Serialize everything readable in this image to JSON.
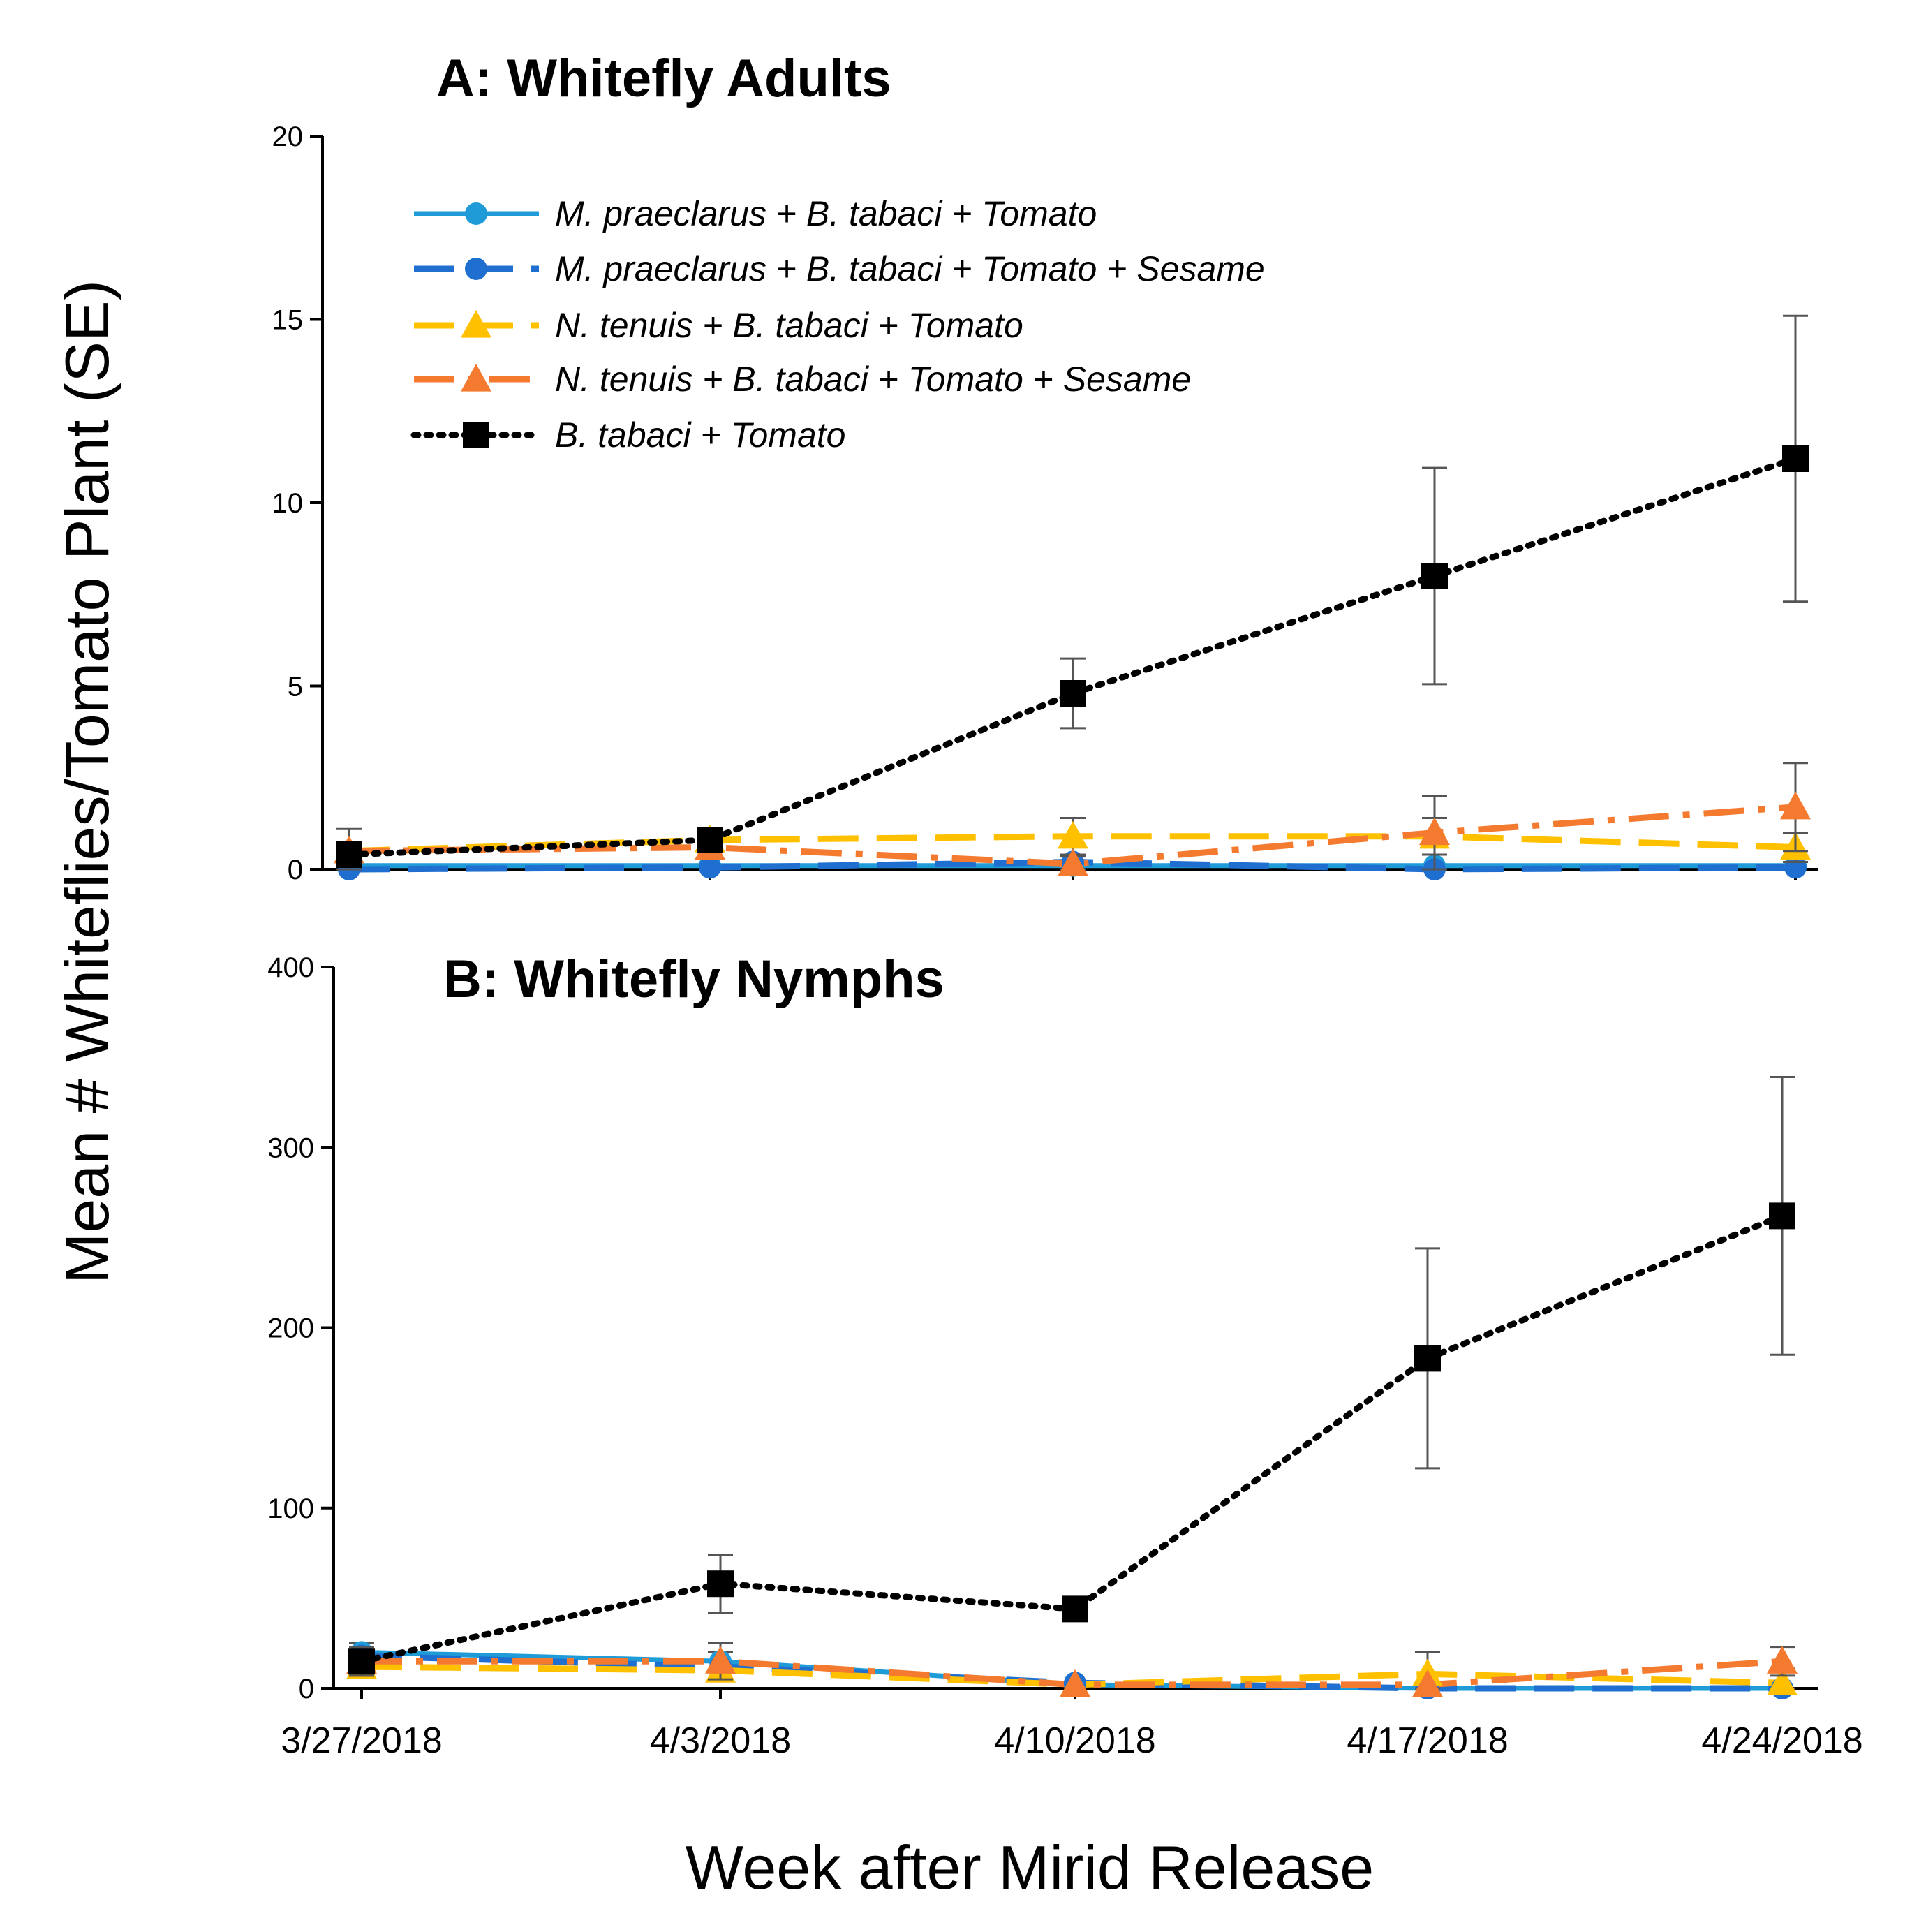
{
  "chart_data": [
    {
      "type": "line",
      "title": "A: Whitefly Adults",
      "ylim": [
        0,
        20
      ],
      "yticks": [
        "0",
        "5",
        "10",
        "15",
        "20"
      ],
      "yvalues": [
        0,
        5,
        10,
        15,
        20
      ],
      "categories": [
        "3/27/2018",
        "4/3/2018",
        "4/10/2018",
        "4/17/2018",
        "4/24/2018"
      ],
      "legend_position": "top-left",
      "series": [
        {
          "name": "M. praeclarus + B. tabaci + Tomato",
          "color": "#1f9bd8",
          "marker": "circle",
          "dash": "solid",
          "values": [
            0.1,
            0.1,
            0.1,
            0.1,
            0.1
          ],
          "err": [
            0,
            0,
            0,
            0,
            0
          ]
        },
        {
          "name": "M. praeclarus + B. tabaci + Tomato + Sesame",
          "color": "#1f6fd0",
          "marker": "circle",
          "dash": "long-dash",
          "values": [
            0,
            0.05,
            0.2,
            0,
            0.05
          ],
          "err": [
            0,
            0,
            0,
            0,
            0
          ]
        },
        {
          "name": "N. tenuis + B. tabaci + Tomato",
          "color": "#ffc000",
          "marker": "triangle",
          "dash": "long-dash",
          "values": [
            0.5,
            0.8,
            0.9,
            0.9,
            0.6
          ],
          "err": [
            0,
            0,
            0.5,
            0.5,
            0.4
          ]
        },
        {
          "name": "N. tenuis + B. tabaci + Tomato + Sesame",
          "color": "#f47a30",
          "marker": "triangle",
          "dash": "dash-dot",
          "values": [
            0.5,
            0.6,
            0.15,
            1.0,
            1.7
          ],
          "err": [
            0.6,
            0.3,
            0.2,
            1.0,
            1.2
          ]
        },
        {
          "name": "B. tabaci + Tomato",
          "color": "#000000",
          "marker": "square",
          "dash": "dotted",
          "values": [
            0.4,
            0.8,
            4.8,
            8.0,
            11.2
          ],
          "err": [
            0.3,
            0.2,
            0.95,
            2.95,
            3.9
          ]
        }
      ]
    },
    {
      "type": "line",
      "title": "B: Whitefly Nymphs",
      "ylim": [
        0,
        400
      ],
      "yticks": [
        "0",
        "100",
        "200",
        "300",
        "400"
      ],
      "yvalues": [
        0,
        100,
        200,
        300,
        400
      ],
      "categories": [
        "3/27/2018",
        "4/3/2018",
        "4/10/2018",
        "4/17/2018",
        "4/24/2018"
      ],
      "series": [
        {
          "name": "M. praeclarus + B. tabaci + Tomato",
          "color": "#1f9bd8",
          "marker": "circle",
          "dash": "solid",
          "values": [
            20,
            15,
            2,
            0,
            0
          ],
          "err": [
            5,
            5,
            0,
            0,
            0
          ]
        },
        {
          "name": "M. praeclarus + B. tabaci + Tomato + Sesame",
          "color": "#1f6fd0",
          "marker": "circle",
          "dash": "long-dash",
          "values": [
            18,
            12,
            3,
            0,
            0
          ],
          "err": [
            0,
            0,
            0,
            0,
            0
          ]
        },
        {
          "name": "N. tenuis + B. tabaci + Tomato",
          "color": "#ffc000",
          "marker": "triangle",
          "dash": "long-dash",
          "values": [
            12,
            10,
            2,
            8,
            3
          ],
          "err": [
            0,
            0,
            0,
            12,
            8
          ]
        },
        {
          "name": "N. tenuis + B. tabaci + Tomato + Sesame",
          "color": "#f47a30",
          "marker": "triangle",
          "dash": "dash-dot",
          "values": [
            15,
            15,
            2,
            2,
            15
          ],
          "err": [
            8,
            10,
            0,
            0,
            8
          ]
        },
        {
          "name": "B. tabaci + Tomato",
          "color": "#000000",
          "marker": "square",
          "dash": "dotted",
          "values": [
            15,
            58,
            44,
            183,
            262
          ],
          "err": [
            8,
            16,
            6,
            61,
            77
          ]
        }
      ]
    }
  ],
  "ylabel": "Mean # Whiteflies/Tomato Plant (SE)",
  "xlabel": "Week after Mirid Release"
}
